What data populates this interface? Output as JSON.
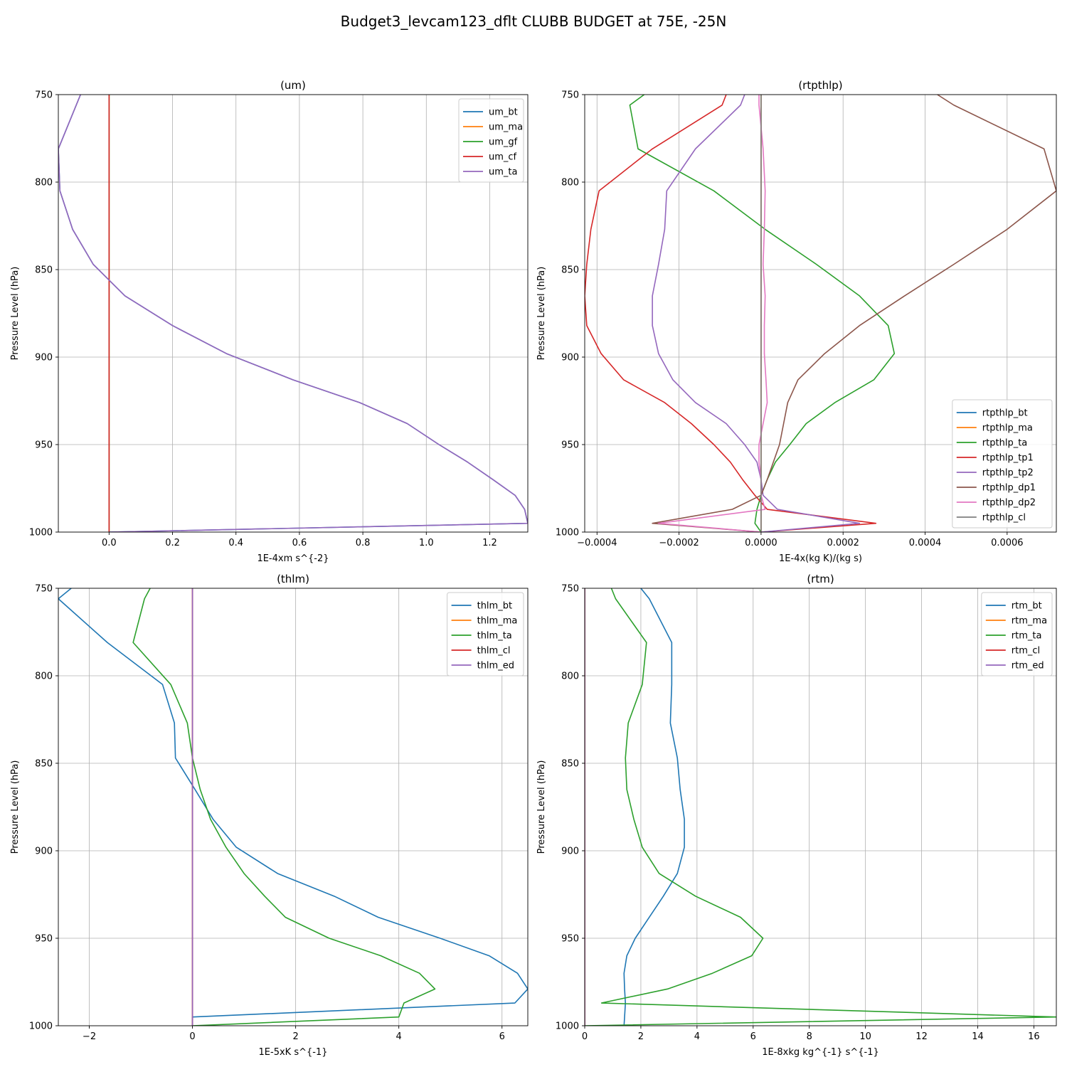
{
  "figure": {
    "title": "Budget3_levcam123_dflt CLUBB BUDGET at 75E, -25N"
  },
  "chart_data": [
    {
      "type": "line",
      "title": "(um)",
      "xlabel": "1E-4xm s^{-2}",
      "ylabel": "Pressure Level (hPa)",
      "xlim": [
        -0.16,
        1.32
      ],
      "ylim": [
        1000,
        750
      ],
      "y_inverted": true,
      "grid": true,
      "legend_position": "upper right",
      "xticks": [
        0.0,
        0.2,
        0.4,
        0.6,
        0.8,
        1.0,
        1.2
      ],
      "xtick_labels": [
        "0.0",
        "0.2",
        "0.4",
        "0.6",
        "0.8",
        "1.0",
        "1.2"
      ],
      "yticks": [
        750,
        800,
        850,
        900,
        950,
        1000
      ],
      "ytick_labels": [
        "750",
        "800",
        "850",
        "900",
        "950",
        "1000"
      ],
      "levels": [
        750,
        781,
        805,
        827,
        847,
        865,
        882,
        898,
        913,
        926,
        938,
        950,
        960,
        970,
        979,
        987,
        995,
        1000
      ],
      "series": [
        {
          "name": "um_bt",
          "color": "#1f77b4",
          "values": [
            -0.09,
            -0.16,
            -0.155,
            -0.115,
            -0.05,
            0.05,
            0.2,
            0.37,
            0.58,
            0.79,
            0.94,
            1.04,
            1.13,
            1.21,
            1.28,
            1.31,
            1.32,
            0.0
          ]
        },
        {
          "name": "um_ma",
          "color": "#ff7f0e",
          "values": [
            0,
            0,
            0,
            0,
            0,
            0,
            0,
            0,
            0,
            0,
            0,
            0,
            0,
            0,
            0,
            0,
            0,
            0
          ]
        },
        {
          "name": "um_gf",
          "color": "#2ca02c",
          "values": [
            0,
            0,
            0,
            0,
            0,
            0,
            0,
            0,
            0,
            0,
            0,
            0,
            0,
            0,
            0,
            0,
            0,
            0
          ]
        },
        {
          "name": "um_cf",
          "color": "#d62728",
          "values": [
            0,
            0,
            0,
            0,
            0,
            0,
            0,
            0,
            0,
            0,
            0,
            0,
            0,
            0,
            0,
            0,
            0,
            0
          ]
        },
        {
          "name": "um_ta",
          "color": "#9467bd",
          "values": [
            -0.09,
            -0.16,
            -0.155,
            -0.115,
            -0.05,
            0.05,
            0.2,
            0.37,
            0.58,
            0.79,
            0.94,
            1.04,
            1.13,
            1.21,
            1.28,
            1.31,
            1.32,
            0.0
          ]
        }
      ]
    },
    {
      "type": "line",
      "title": "(rtpthlp)",
      "xlabel": "1E-4x(kg K)/(kg s)",
      "ylabel": "Pressure Level (hPa)",
      "xlim": [
        -0.00043,
        0.00072
      ],
      "ylim": [
        1000,
        750
      ],
      "y_inverted": true,
      "grid": true,
      "legend_position": "lower right",
      "xticks": [
        -0.0004,
        -0.0002,
        0.0,
        0.0002,
        0.0004,
        0.0006
      ],
      "xtick_labels": [
        "−0.0004",
        "−0.0002",
        "0.0000",
        "0.0002",
        "0.0004",
        "0.0006"
      ],
      "yticks": [
        750,
        800,
        850,
        900,
        950,
        1000
      ],
      "ytick_labels": [
        "750",
        "800",
        "850",
        "900",
        "950",
        "1000"
      ],
      "levels": [
        750,
        756,
        781,
        805,
        827,
        847,
        865,
        882,
        898,
        913,
        926,
        938,
        950,
        960,
        970,
        979,
        987,
        995,
        1000
      ],
      "series": [
        {
          "name": "rtpthlp_bt",
          "color": "#1f77b4",
          "values": [
            0,
            0,
            0,
            0,
            0,
            0,
            0,
            0,
            0,
            0,
            0,
            0,
            0,
            0,
            0,
            0,
            0,
            0,
            0
          ]
        },
        {
          "name": "rtpthlp_ma",
          "color": "#ff7f0e",
          "values": [
            0,
            0,
            0,
            0,
            0,
            0,
            0,
            0,
            0,
            0,
            0,
            0,
            0,
            0,
            0,
            0,
            0,
            0,
            0
          ]
        },
        {
          "name": "rtpthlp_ta",
          "color": "#2ca02c",
          "values": [
            -0.000285,
            -0.00032,
            -0.0003,
            -0.000115,
            1e-05,
            0.000135,
            0.00024,
            0.00031,
            0.000325,
            0.000275,
            0.00018,
            0.00011,
            7e-05,
            3.5e-05,
            1.5e-05,
            0.0,
            -1e-05,
            -1.5e-05,
            0.0
          ]
        },
        {
          "name": "rtpthlp_tp1",
          "color": "#d62728",
          "values": [
            -8.5e-05,
            -9.5e-05,
            -0.000265,
            -0.000395,
            -0.000415,
            -0.000425,
            -0.00043,
            -0.000425,
            -0.00039,
            -0.000335,
            -0.000235,
            -0.00017,
            -0.000115,
            -7.5e-05,
            -4.5e-05,
            -1.5e-05,
            1.5e-05,
            0.00028,
            0.0
          ]
        },
        {
          "name": "rtpthlp_tp2",
          "color": "#9467bd",
          "values": [
            -4e-05,
            -5e-05,
            -0.00016,
            -0.00023,
            -0.000235,
            -0.00025,
            -0.000265,
            -0.000265,
            -0.00025,
            -0.000215,
            -0.00016,
            -8.5e-05,
            -4e-05,
            -1e-05,
            0.0,
            5e-06,
            4e-05,
            0.00024,
            0.0
          ]
        },
        {
          "name": "rtpthlp_dp1",
          "color": "#8c564b",
          "values": [
            0.00043,
            0.00047,
            0.00069,
            0.00072,
            0.0006,
            0.00047,
            0.00035,
            0.00024,
            0.000155,
            9e-05,
            6.5e-05,
            5.5e-05,
            4.5e-05,
            3e-05,
            1.5e-05,
            0.0,
            -7e-05,
            -0.000265,
            0.0
          ]
        },
        {
          "name": "rtpthlp_dp2",
          "color": "#e377c2",
          "values": [
            -5e-06,
            -5e-06,
            5e-06,
            1e-05,
            8e-06,
            5e-06,
            1e-05,
            8e-06,
            8e-06,
            1.2e-05,
            1.5e-05,
            5e-06,
            -5e-06,
            -5e-06,
            0.0,
            0.0,
            1e-05,
            -0.00025,
            0.0
          ]
        },
        {
          "name": "rtpthlp_cl",
          "color": "#7f7f7f",
          "values": [
            0,
            0,
            0,
            0,
            0,
            0,
            0,
            0,
            0,
            0,
            0,
            0,
            0,
            0,
            0,
            0,
            0,
            0,
            0
          ]
        }
      ]
    },
    {
      "type": "line",
      "title": "(thlm)",
      "xlabel": "1E-5xK s^{-1}",
      "ylabel": "Pressure Level (hPa)",
      "xlim": [
        -2.6,
        6.5
      ],
      "ylim": [
        1000,
        750
      ],
      "y_inverted": true,
      "grid": true,
      "legend_position": "upper right",
      "xticks": [
        -2,
        0,
        2,
        4,
        6
      ],
      "xtick_labels": [
        "−2",
        "0",
        "2",
        "4",
        "6"
      ],
      "yticks": [
        750,
        800,
        850,
        900,
        950,
        1000
      ],
      "ytick_labels": [
        "750",
        "800",
        "850",
        "900",
        "950",
        "1000"
      ],
      "levels": [
        750,
        756,
        781,
        805,
        827,
        847,
        865,
        882,
        898,
        913,
        926,
        938,
        950,
        960,
        970,
        979,
        987,
        995,
        1000
      ],
      "series": [
        {
          "name": "thlm_bt",
          "color": "#1f77b4",
          "values": [
            -2.35,
            -2.6,
            -1.65,
            -0.58,
            -0.35,
            -0.33,
            0.05,
            0.4,
            0.85,
            1.65,
            2.75,
            3.6,
            4.8,
            5.75,
            6.3,
            6.5,
            6.25,
            0.0,
            0.0
          ]
        },
        {
          "name": "thlm_ma",
          "color": "#ff7f0e",
          "values": [
            0,
            0,
            0,
            0,
            0,
            0,
            0,
            0,
            0,
            0,
            0,
            0,
            0,
            0,
            0,
            0,
            0,
            0,
            0
          ]
        },
        {
          "name": "thlm_ta",
          "color": "#2ca02c",
          "values": [
            -0.82,
            -0.93,
            -1.15,
            -0.42,
            -0.1,
            0.0,
            0.15,
            0.35,
            0.65,
            1.0,
            1.4,
            1.8,
            2.65,
            3.65,
            4.4,
            4.7,
            4.1,
            4.0,
            0.0
          ]
        },
        {
          "name": "thlm_cl",
          "color": "#d62728",
          "values": [
            0,
            0,
            0,
            0,
            0,
            0,
            0,
            0,
            0,
            0,
            0,
            0,
            0,
            0,
            0,
            0,
            0,
            0,
            0
          ]
        },
        {
          "name": "thlm_ed",
          "color": "#9467bd",
          "values": [
            0,
            0,
            0,
            0,
            0,
            0,
            0,
            0,
            0,
            0,
            0,
            0,
            0,
            0,
            0,
            0,
            0,
            0,
            0
          ]
        }
      ]
    },
    {
      "type": "line",
      "title": "(rtm)",
      "xlabel": "1E-8xkg kg^{-1} s^{-1}",
      "ylabel": "Pressure Level (hPa)",
      "xlim": [
        0,
        16.8
      ],
      "ylim": [
        1000,
        750
      ],
      "y_inverted": true,
      "grid": true,
      "legend_position": "upper right",
      "xticks": [
        0,
        2,
        4,
        6,
        8,
        10,
        12,
        14,
        16
      ],
      "xtick_labels": [
        "0",
        "2",
        "4",
        "6",
        "8",
        "10",
        "12",
        "14",
        "16"
      ],
      "yticks": [
        750,
        800,
        850,
        900,
        950,
        1000
      ],
      "ytick_labels": [
        "750",
        "800",
        "850",
        "900",
        "950",
        "1000"
      ],
      "levels": [
        750,
        756,
        781,
        805,
        827,
        847,
        865,
        882,
        898,
        913,
        926,
        938,
        950,
        960,
        970,
        979,
        987,
        995,
        1000
      ],
      "series": [
        {
          "name": "rtm_bt",
          "color": "#1f77b4",
          "values": [
            2.0,
            2.3,
            3.1,
            3.1,
            3.05,
            3.3,
            3.4,
            3.55,
            3.55,
            3.3,
            2.8,
            2.3,
            1.8,
            1.5,
            1.4,
            1.42,
            1.45,
            1.42,
            1.4
          ]
        },
        {
          "name": "rtm_ma",
          "color": "#ff7f0e",
          "values": [
            0,
            0,
            0,
            0,
            0,
            0,
            0,
            0,
            0,
            0,
            0,
            0,
            0,
            0,
            0,
            0,
            0,
            0,
            0
          ]
        },
        {
          "name": "rtm_ta",
          "color": "#2ca02c",
          "values": [
            0.95,
            1.1,
            2.2,
            2.05,
            1.55,
            1.45,
            1.5,
            1.75,
            2.05,
            2.65,
            3.95,
            5.55,
            6.35,
            5.95,
            4.55,
            2.95,
            0.6,
            16.8,
            0.0
          ]
        },
        {
          "name": "rtm_cl",
          "color": "#d62728",
          "values": [
            0,
            0,
            0,
            0,
            0,
            0,
            0,
            0,
            0,
            0,
            0,
            0,
            0,
            0,
            0,
            0,
            0,
            0,
            0
          ]
        },
        {
          "name": "rtm_ed",
          "color": "#9467bd",
          "values": [
            0,
            0,
            0,
            0,
            0,
            0,
            0,
            0,
            0,
            0,
            0,
            0,
            0,
            0,
            0,
            0,
            0,
            0,
            0
          ]
        }
      ]
    }
  ]
}
